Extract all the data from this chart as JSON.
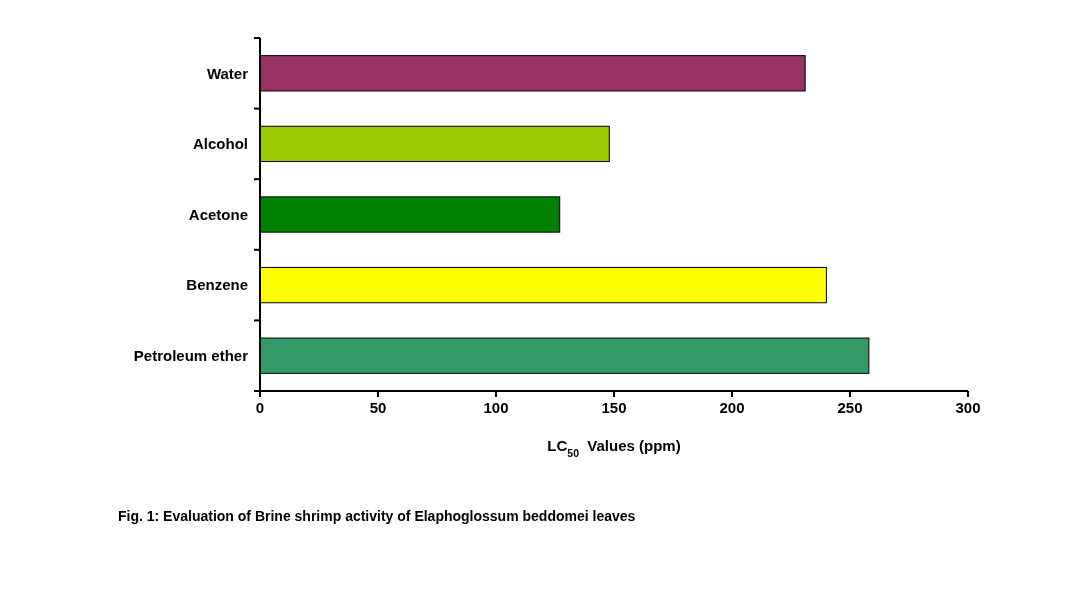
{
  "chart_data": {
    "type": "bar",
    "orientation": "horizontal",
    "categories": [
      "Water",
      "Alcohol",
      "Acetone",
      "Benzene",
      "Petroleum ether"
    ],
    "values": [
      231,
      148,
      127,
      240,
      258
    ],
    "colors": [
      "#993366",
      "#99cc00",
      "#008000",
      "#ffff00",
      "#339966"
    ],
    "xlim": [
      0,
      300
    ],
    "xticks": [
      0,
      50,
      100,
      150,
      200,
      250,
      300
    ],
    "xlabel": "LC$_{50}$  Values (ppm)",
    "grid": false,
    "annotations": [
      "Fig. 1: Evaluation of Brine shrimp activity of Elaphoglossum beddomei leaves"
    ]
  }
}
